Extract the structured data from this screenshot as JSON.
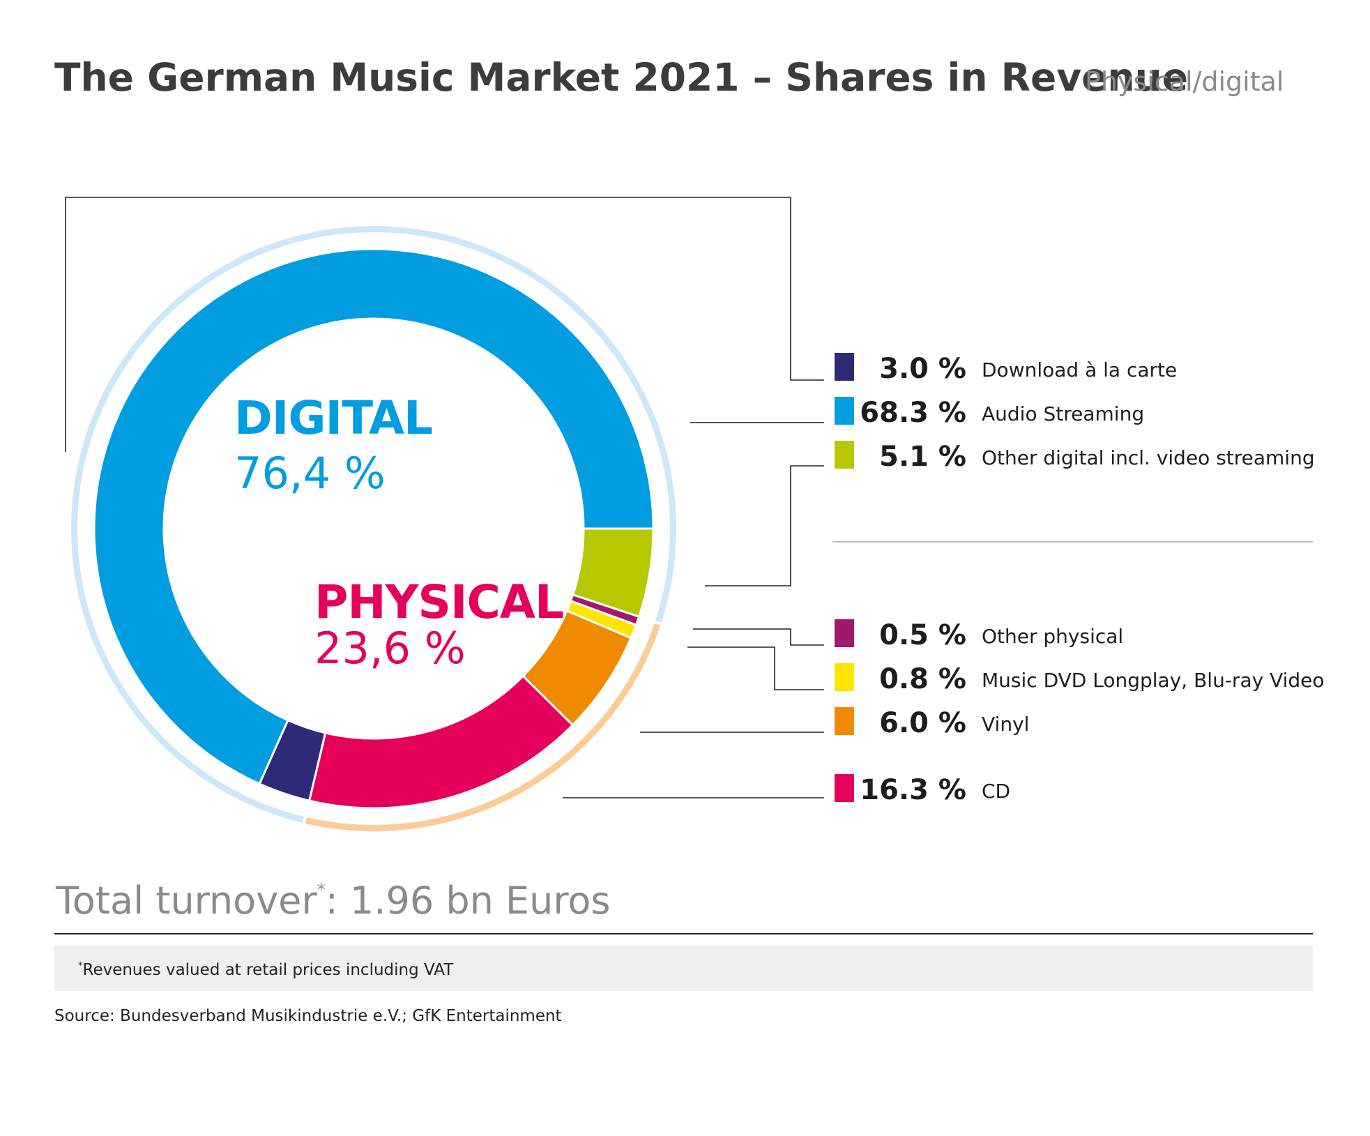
{
  "chart_data": {
    "type": "donut",
    "title": "The German Music Market 2021 – Shares in Revenue",
    "subtitle": "Physical/digital",
    "categories": [
      "Download à la carte",
      "Audio Streaming",
      "Other digital incl. video streaming",
      "Other physical",
      "Music DVD Longplay, Blu-ray Video",
      "Vinyl",
      "CD"
    ],
    "values": [
      3.0,
      68.3,
      5.1,
      0.5,
      0.8,
      6.0,
      16.3
    ],
    "value_labels": [
      "3.0 %",
      "68.3 %",
      "5.1 %",
      "0.5 %",
      "0.8 %",
      "6.0 %",
      "16.3 %"
    ],
    "colors": [
      "#2e2a77",
      "#009ee0",
      "#b8c800",
      "#a3176f",
      "#ffe500",
      "#f08a00",
      "#e5005c"
    ],
    "groups": [
      {
        "name": "DIGITAL",
        "value": 76.4,
        "value_label": "76,4 %",
        "color": "#009ee0",
        "ring_color": "#cde8f8"
      },
      {
        "name": "PHYSICAL",
        "value": 23.6,
        "value_label": "23,6 %",
        "color": "#e5005c",
        "ring_color": "#fdcb96"
      }
    ],
    "total": {
      "text": "Total turnover",
      "mark": "*",
      "value_text": ": 1.96 bn Euros"
    },
    "footnote": {
      "mark": "*",
      "text": "Revenues valued at retail prices including VAT"
    },
    "source": "Source: Bundesverband Musikindustrie e.V.; GfK Entertainment"
  }
}
